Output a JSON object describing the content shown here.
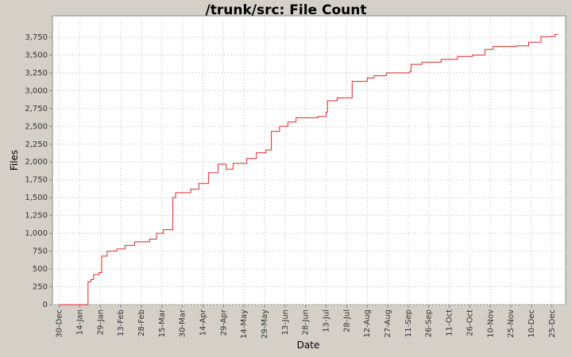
{
  "chart_data": {
    "type": "step-line",
    "title": "/trunk/src: File Count",
    "x_label": "Date",
    "y_label": "Files",
    "xlim": [
      -5,
      370
    ],
    "ylim": [
      0,
      4050
    ],
    "grid": true,
    "xticks": [
      {
        "value": 0,
        "label": "30-Dec"
      },
      {
        "value": 15,
        "label": "14-Jan"
      },
      {
        "value": 30,
        "label": "29-Jan"
      },
      {
        "value": 45,
        "label": "13-Feb"
      },
      {
        "value": 60,
        "label": "28-Feb"
      },
      {
        "value": 75,
        "label": "15-Mar"
      },
      {
        "value": 90,
        "label": "30-Mar"
      },
      {
        "value": 105,
        "label": "14-Apr"
      },
      {
        "value": 120,
        "label": "29-Apr"
      },
      {
        "value": 135,
        "label": "14-May"
      },
      {
        "value": 150,
        "label": "29-May"
      },
      {
        "value": 165,
        "label": "13-Jun"
      },
      {
        "value": 180,
        "label": "28-Jun"
      },
      {
        "value": 195,
        "label": "13-Jul"
      },
      {
        "value": 210,
        "label": "28-Jul"
      },
      {
        "value": 225,
        "label": "12-Aug"
      },
      {
        "value": 240,
        "label": "27-Aug"
      },
      {
        "value": 255,
        "label": "11-Sep"
      },
      {
        "value": 270,
        "label": "26-Sep"
      },
      {
        "value": 285,
        "label": "11-Oct"
      },
      {
        "value": 300,
        "label": "26-Oct"
      },
      {
        "value": 315,
        "label": "10-Nov"
      },
      {
        "value": 330,
        "label": "25-Nov"
      },
      {
        "value": 345,
        "label": "10-Dec"
      },
      {
        "value": 360,
        "label": "25-Dec"
      }
    ],
    "yticks": [
      0,
      250,
      500,
      750,
      {
        "value": 1000,
        "label": "1,000"
      },
      {
        "value": 1250,
        "label": "1,250"
      },
      {
        "value": 1500,
        "label": "1,500"
      },
      {
        "value": 1750,
        "label": "1,750"
      },
      {
        "value": 2000,
        "label": "2,000"
      },
      {
        "value": 2250,
        "label": "2,250"
      },
      {
        "value": 2500,
        "label": "2,500"
      },
      {
        "value": 2750,
        "label": "2,750"
      },
      {
        "value": 3000,
        "label": "3,000"
      },
      {
        "value": 3250,
        "label": "3,250"
      },
      {
        "value": 3500,
        "label": "3,500"
      },
      {
        "value": 3750,
        "label": "3,750"
      }
    ],
    "x": [
      0,
      21,
      23,
      25,
      29,
      31,
      35,
      42,
      48,
      55,
      66,
      71,
      76,
      83,
      85,
      96,
      102,
      109,
      116,
      122,
      127,
      137,
      144,
      151,
      155,
      161,
      167,
      173,
      189,
      195,
      196,
      203,
      214,
      225,
      230,
      239,
      256,
      257,
      265,
      279,
      291,
      302,
      311,
      317,
      334,
      343,
      352,
      362
    ],
    "series": [
      {
        "name": "Files",
        "color": "#e0282a",
        "values": [
          0,
          320,
          350,
          420,
          450,
          680,
          750,
          780,
          830,
          880,
          920,
          1000,
          1050,
          1500,
          1570,
          1620,
          1700,
          1850,
          1970,
          1900,
          1980,
          2050,
          2130,
          2170,
          2430,
          2500,
          2560,
          2620,
          2640,
          2700,
          2860,
          2900,
          3130,
          3180,
          3210,
          3250,
          3270,
          3370,
          3400,
          3440,
          3480,
          3500,
          3580,
          3620,
          3630,
          3680,
          3760,
          3790
        ]
      }
    ]
  }
}
